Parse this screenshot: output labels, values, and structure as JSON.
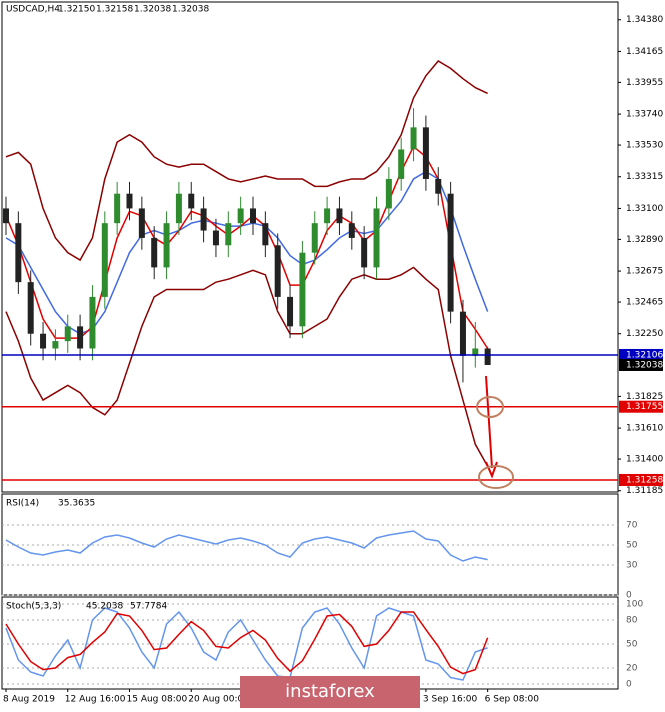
{
  "chart_data": {
    "type": "candlestick",
    "symbol": "USDCAD,H4",
    "ohlc_labels": [
      "1.32150",
      "1.32158",
      "1.32038",
      "1.32038"
    ],
    "categories": [
      "8 Aug 2019",
      null,
      null,
      null,
      null,
      "12 Aug 16:00",
      null,
      null,
      null,
      null,
      "15 Aug 08:00",
      null,
      null,
      null,
      null,
      "20 Aug 00:00",
      null,
      null,
      null,
      null,
      null,
      null,
      null,
      null,
      null,
      null,
      null,
      null,
      null,
      null,
      null,
      null,
      null,
      null,
      "3 Sep 16:00",
      null,
      null,
      null,
      null,
      "6 Sep 08:00"
    ],
    "open": [
      1.331,
      1.33,
      1.326,
      1.3225,
      1.3215,
      1.322,
      1.323,
      1.3215,
      1.325,
      1.33,
      1.332,
      1.331,
      1.329,
      1.327,
      1.33,
      1.332,
      1.331,
      1.3295,
      1.3285,
      1.33,
      1.331,
      1.33,
      1.3285,
      1.325,
      1.323,
      1.328,
      1.33,
      1.331,
      1.33,
      1.329,
      1.327,
      1.331,
      1.333,
      1.335,
      1.3365,
      1.333,
      1.332,
      1.324,
      1.321,
      1.3215
    ],
    "high": [
      1.3318,
      1.3308,
      1.3268,
      1.3233,
      1.3228,
      1.3238,
      1.3238,
      1.3258,
      1.3308,
      1.3328,
      1.3328,
      1.3318,
      1.3298,
      1.3308,
      1.3328,
      1.3328,
      1.3318,
      1.3303,
      1.3308,
      1.3318,
      1.3318,
      1.3308,
      1.3293,
      1.3258,
      1.3288,
      1.3308,
      1.3318,
      1.3318,
      1.3308,
      1.3298,
      1.3318,
      1.3338,
      1.3358,
      1.3378,
      1.3373,
      1.3338,
      1.3328,
      1.3248,
      1.3233,
      1.32158
    ],
    "low": [
      1.3292,
      1.3252,
      1.3217,
      1.3207,
      1.3207,
      1.3212,
      1.3207,
      1.3207,
      1.3242,
      1.3292,
      1.3302,
      1.3282,
      1.3262,
      1.3262,
      1.3292,
      1.3302,
      1.3287,
      1.3277,
      1.3277,
      1.3292,
      1.3292,
      1.3277,
      1.3242,
      1.3222,
      1.3222,
      1.3272,
      1.3292,
      1.3292,
      1.3282,
      1.3262,
      1.3262,
      1.3302,
      1.3322,
      1.3342,
      1.3322,
      1.3312,
      1.3232,
      1.3192,
      1.3202,
      1.32038
    ],
    "close": [
      1.33,
      1.326,
      1.3225,
      1.3215,
      1.322,
      1.323,
      1.3215,
      1.325,
      1.33,
      1.332,
      1.331,
      1.329,
      1.327,
      1.33,
      1.332,
      1.331,
      1.3295,
      1.3285,
      1.33,
      1.331,
      1.33,
      1.3285,
      1.325,
      1.323,
      1.328,
      1.33,
      1.331,
      1.33,
      1.329,
      1.327,
      1.331,
      1.333,
      1.335,
      1.3365,
      1.333,
      1.332,
      1.324,
      1.321,
      1.3215,
      1.32038
    ],
    "up_color": "#2e8b2e",
    "down_color": "#222222",
    "lines": [
      {
        "color": "#8b0000",
        "values": [
          1.3345,
          1.3348,
          1.334,
          1.331,
          1.329,
          1.328,
          1.3275,
          1.329,
          1.333,
          1.3355,
          1.336,
          1.3355,
          1.3345,
          1.334,
          1.3338,
          1.334,
          1.334,
          1.3335,
          1.333,
          1.3328,
          1.333,
          1.3332,
          1.333,
          1.333,
          1.333,
          1.3325,
          1.3325,
          1.3328,
          1.333,
          1.333,
          1.3335,
          1.3345,
          1.336,
          1.3385,
          1.34,
          1.341,
          1.3405,
          1.3398,
          1.3392,
          1.3388
        ]
      },
      {
        "color": "#8b0000",
        "values": [
          1.324,
          1.322,
          1.3195,
          1.318,
          1.3185,
          1.319,
          1.3185,
          1.3175,
          1.317,
          1.318,
          1.3205,
          1.323,
          1.325,
          1.3255,
          1.3255,
          1.3255,
          1.3255,
          1.326,
          1.3262,
          1.3265,
          1.3268,
          1.3265,
          1.324,
          1.3225,
          1.3225,
          1.323,
          1.3235,
          1.325,
          1.3262,
          1.3265,
          1.3262,
          1.3262,
          1.3265,
          1.327,
          1.3262,
          1.3255,
          1.321,
          1.318,
          1.315,
          1.3135
        ]
      },
      {
        "color": "#4169e1",
        "values": [
          1.329,
          1.3285,
          1.327,
          1.3255,
          1.324,
          1.323,
          1.3225,
          1.3228,
          1.324,
          1.326,
          1.328,
          1.3292,
          1.3295,
          1.3292,
          1.3295,
          1.33,
          1.3302,
          1.33,
          1.3298,
          1.3298,
          1.33,
          1.3298,
          1.329,
          1.3278,
          1.3272,
          1.3275,
          1.3282,
          1.329,
          1.3295,
          1.3293,
          1.3295,
          1.3305,
          1.3315,
          1.333,
          1.3335,
          1.333,
          1.331,
          1.3285,
          1.3262,
          1.324
        ]
      },
      {
        "color": "#e00000",
        "values": [
          1.3305,
          1.3285,
          1.326,
          1.3235,
          1.3222,
          1.3222,
          1.3222,
          1.323,
          1.326,
          1.329,
          1.3308,
          1.3305,
          1.329,
          1.3285,
          1.3295,
          1.3308,
          1.3305,
          1.3298,
          1.3292,
          1.3298,
          1.3305,
          1.3298,
          1.328,
          1.3258,
          1.3258,
          1.3275,
          1.3295,
          1.3305,
          1.33,
          1.3288,
          1.3295,
          1.3315,
          1.3335,
          1.3352,
          1.3345,
          1.333,
          1.3285,
          1.324,
          1.3228,
          1.3215
        ]
      }
    ],
    "levels": [
      {
        "value": 1.32106,
        "color": "#0000c0"
      },
      {
        "value": 1.31755,
        "color": "#e00000"
      },
      {
        "value": 1.31258,
        "color": "#e00000"
      }
    ],
    "ylim": [
      1.3119,
      1.3448
    ],
    "yticks": [
      {
        "value": 1.3438,
        "label": "1.34380"
      },
      1.34165,
      1.33955,
      {
        "value": 1.3374,
        "label": "1.33740"
      },
      {
        "value": 1.3353,
        "label": "1.33530"
      },
      1.33315,
      {
        "value": 1.331,
        "label": "1.33100"
      },
      {
        "value": 1.3289,
        "label": "1.32890"
      },
      1.32675,
      1.32465,
      {
        "value": 1.3225,
        "label": "1.32250"
      },
      1.31825,
      {
        "value": 1.3161,
        "label": "1.31610"
      },
      {
        "value": 1.314,
        "label": "1.31400"
      },
      1.31185
    ],
    "rsi": {
      "title": "RSI(14)",
      "color": "#6495ed",
      "values": [
        55,
        48,
        42,
        40,
        43,
        45,
        42,
        52,
        58,
        60,
        57,
        52,
        48,
        56,
        60,
        57,
        54,
        51,
        55,
        57,
        54,
        50,
        42,
        38,
        52,
        56,
        58,
        55,
        52,
        47,
        57,
        60,
        62,
        64,
        56,
        54,
        40,
        34,
        38,
        35.3635
      ],
      "ylim": [
        0,
        100
      ],
      "yticks": [
        70,
        50,
        30,
        0
      ]
    },
    "stoch": {
      "title": "Stoch(5,3,3)",
      "series": [
        {
          "color": "#6495ed",
          "values": [
            70,
            30,
            15,
            10,
            35,
            55,
            20,
            80,
            95,
            90,
            70,
            40,
            20,
            75,
            90,
            70,
            40,
            30,
            65,
            80,
            55,
            30,
            10,
            8,
            70,
            90,
            95,
            75,
            45,
            20,
            85,
            95,
            90,
            85,
            30,
            25,
            8,
            5,
            40,
            45.2038
          ]
        },
        {
          "color": "#e00000",
          "values": [
            75,
            50,
            28,
            18,
            20,
            33,
            37,
            52,
            65,
            88,
            85,
            67,
            43,
            45,
            62,
            78,
            67,
            47,
            45,
            58,
            67,
            55,
            32,
            16,
            29,
            56,
            85,
            87,
            72,
            47,
            50,
            67,
            90,
            90,
            68,
            47,
            21,
            13,
            18,
            57.7784
          ]
        }
      ],
      "ylim": [
        0,
        100
      ],
      "yticks": [
        100,
        80,
        50,
        20,
        0
      ]
    },
    "watermark": "instaforex"
  }
}
